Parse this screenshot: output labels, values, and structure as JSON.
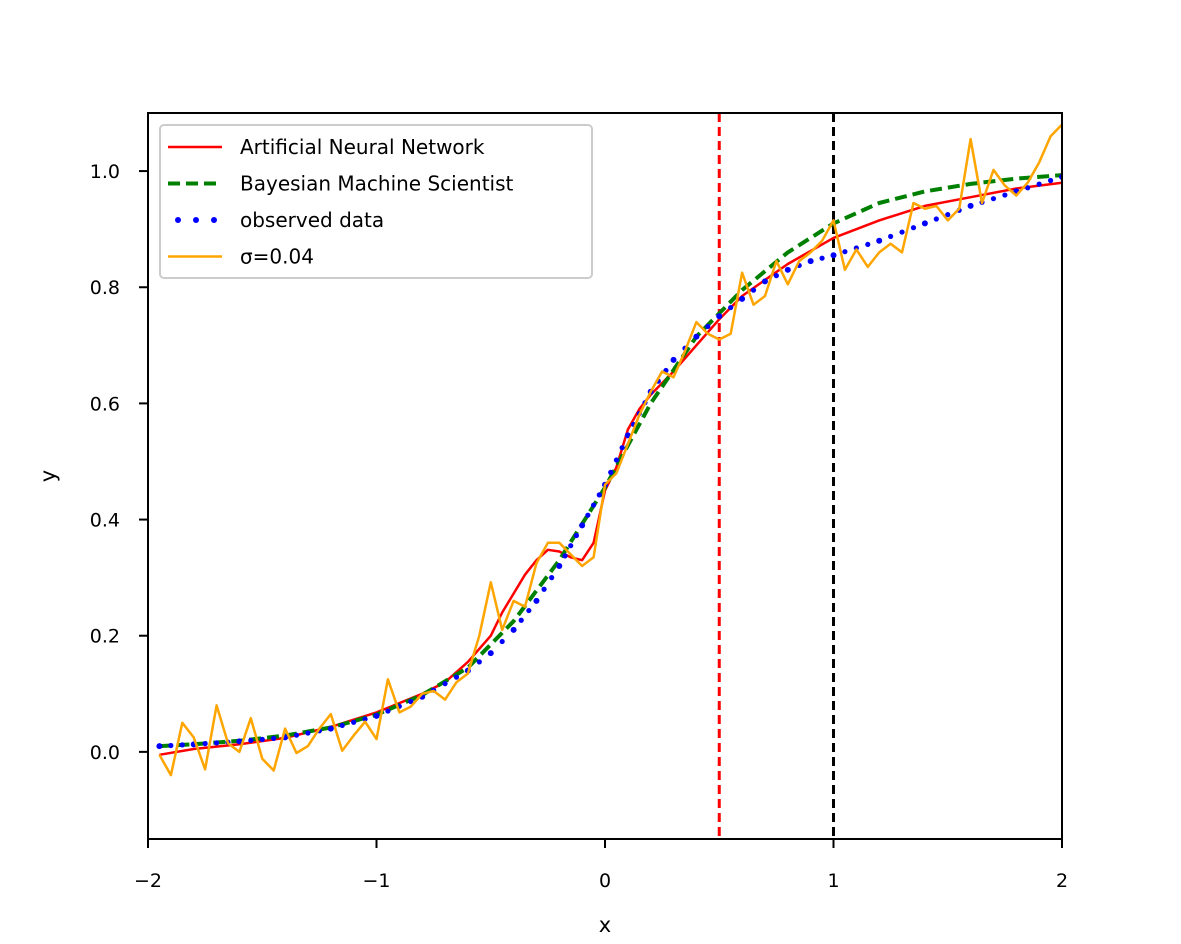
{
  "chart_data": {
    "type": "line",
    "title": "",
    "xlabel": "x",
    "ylabel": "y",
    "xlim": [
      -2,
      2
    ],
    "ylim": [
      -0.15,
      1.1
    ],
    "grid": false,
    "legend_position": "upper-left",
    "x_ticks": [
      {
        "value": -2,
        "label": "−2"
      },
      {
        "value": -1,
        "label": "−1"
      },
      {
        "value": 0,
        "label": "0"
      },
      {
        "value": 1,
        "label": "1"
      },
      {
        "value": 2,
        "label": "2"
      }
    ],
    "y_ticks": [
      {
        "value": 0.0,
        "label": "0.0"
      },
      {
        "value": 0.2,
        "label": "0.2"
      },
      {
        "value": 0.4,
        "label": "0.4"
      },
      {
        "value": 0.6,
        "label": "0.6"
      },
      {
        "value": 0.8,
        "label": "0.8"
      },
      {
        "value": 1.0,
        "label": "1.0"
      }
    ],
    "vertical_lines": [
      {
        "x": 0.5,
        "color": "#ff0000",
        "style": "dashed"
      },
      {
        "x": 1.0,
        "color": "#000000",
        "style": "dashed"
      }
    ],
    "series": [
      {
        "name": "Artificial Neural Network",
        "color": "#ff0000",
        "style": "solid",
        "x": [
          -1.95,
          -1.8,
          -1.6,
          -1.4,
          -1.2,
          -1.0,
          -0.8,
          -0.7,
          -0.6,
          -0.5,
          -0.45,
          -0.35,
          -0.3,
          -0.25,
          -0.2,
          -0.15,
          -0.1,
          -0.05,
          0.0,
          0.05,
          0.1,
          0.15,
          0.2,
          0.3,
          0.4,
          0.5,
          0.6,
          0.8,
          1.0,
          1.2,
          1.4,
          1.6,
          1.8,
          2.0
        ],
        "y": [
          -0.005,
          0.005,
          0.013,
          0.024,
          0.043,
          0.068,
          0.1,
          0.12,
          0.155,
          0.2,
          0.24,
          0.305,
          0.33,
          0.348,
          0.345,
          0.335,
          0.33,
          0.36,
          0.45,
          0.49,
          0.555,
          0.59,
          0.615,
          0.655,
          0.7,
          0.745,
          0.785,
          0.84,
          0.885,
          0.915,
          0.94,
          0.955,
          0.97,
          0.98
        ]
      },
      {
        "name": "Bayesian Machine Scientist",
        "color": "#008000",
        "style": "dashed",
        "x": [
          -1.95,
          -1.8,
          -1.6,
          -1.4,
          -1.2,
          -1.0,
          -0.8,
          -0.6,
          -0.4,
          -0.2,
          0.0,
          0.2,
          0.4,
          0.6,
          0.8,
          1.0,
          1.2,
          1.4,
          1.6,
          1.8,
          2.0
        ],
        "y": [
          0.01,
          0.013,
          0.019,
          0.028,
          0.042,
          0.064,
          0.098,
          0.145,
          0.225,
          0.33,
          0.455,
          0.6,
          0.715,
          0.795,
          0.86,
          0.91,
          0.945,
          0.965,
          0.978,
          0.987,
          0.993
        ]
      },
      {
        "name": "observed data",
        "color": "#0000ff",
        "style": "dotted",
        "x": [
          -1.95,
          -1.8,
          -1.6,
          -1.4,
          -1.2,
          -1.0,
          -0.8,
          -0.6,
          -0.5,
          -0.4,
          -0.3,
          -0.2,
          -0.1,
          0.0,
          0.1,
          0.2,
          0.3,
          0.4,
          0.5,
          0.6,
          0.7,
          0.8,
          0.9,
          1.0,
          1.2,
          1.4,
          1.6,
          1.8,
          2.0
        ],
        "y": [
          0.01,
          0.013,
          0.018,
          0.025,
          0.04,
          0.062,
          0.095,
          0.14,
          0.17,
          0.21,
          0.26,
          0.32,
          0.39,
          0.46,
          0.545,
          0.62,
          0.675,
          0.715,
          0.75,
          0.78,
          0.81,
          0.83,
          0.845,
          0.855,
          0.88,
          0.91,
          0.94,
          0.965,
          0.99
        ]
      },
      {
        "name": "σ=0.04",
        "color": "#ffa500",
        "style": "solid",
        "x": [
          -1.95,
          -1.9,
          -1.85,
          -1.8,
          -1.75,
          -1.7,
          -1.65,
          -1.6,
          -1.55,
          -1.5,
          -1.45,
          -1.4,
          -1.35,
          -1.3,
          -1.25,
          -1.2,
          -1.15,
          -1.1,
          -1.05,
          -1.0,
          -0.95,
          -0.9,
          -0.85,
          -0.8,
          -0.75,
          -0.7,
          -0.65,
          -0.6,
          -0.55,
          -0.5,
          -0.45,
          -0.4,
          -0.35,
          -0.3,
          -0.25,
          -0.2,
          -0.15,
          -0.1,
          -0.05,
          0.0,
          0.05,
          0.1,
          0.15,
          0.2,
          0.25,
          0.3,
          0.35,
          0.4,
          0.45,
          0.5,
          0.55,
          0.6,
          0.65,
          0.7,
          0.75,
          0.8,
          0.85,
          0.9,
          0.95,
          1.0,
          1.05,
          1.1,
          1.15,
          1.2,
          1.25,
          1.3,
          1.35,
          1.4,
          1.45,
          1.5,
          1.55,
          1.6,
          1.65,
          1.7,
          1.75,
          1.8,
          1.85,
          1.9,
          1.95,
          2.0
        ],
        "y": [
          -0.005,
          -0.04,
          0.05,
          0.025,
          -0.03,
          0.08,
          0.015,
          0.0,
          0.058,
          -0.012,
          -0.032,
          0.04,
          -0.002,
          0.01,
          0.04,
          0.065,
          0.002,
          0.028,
          0.052,
          0.022,
          0.125,
          0.068,
          0.078,
          0.1,
          0.105,
          0.09,
          0.12,
          0.135,
          0.2,
          0.292,
          0.21,
          0.26,
          0.25,
          0.325,
          0.36,
          0.36,
          0.34,
          0.32,
          0.335,
          0.46,
          0.48,
          0.53,
          0.58,
          0.62,
          0.655,
          0.645,
          0.69,
          0.74,
          0.72,
          0.71,
          0.72,
          0.825,
          0.77,
          0.785,
          0.845,
          0.805,
          0.845,
          0.86,
          0.88,
          0.915,
          0.83,
          0.865,
          0.835,
          0.86,
          0.875,
          0.86,
          0.945,
          0.935,
          0.94,
          0.915,
          0.935,
          1.055,
          0.945,
          1.002,
          0.975,
          0.958,
          0.98,
          1.015,
          1.06,
          1.08
        ]
      }
    ]
  }
}
